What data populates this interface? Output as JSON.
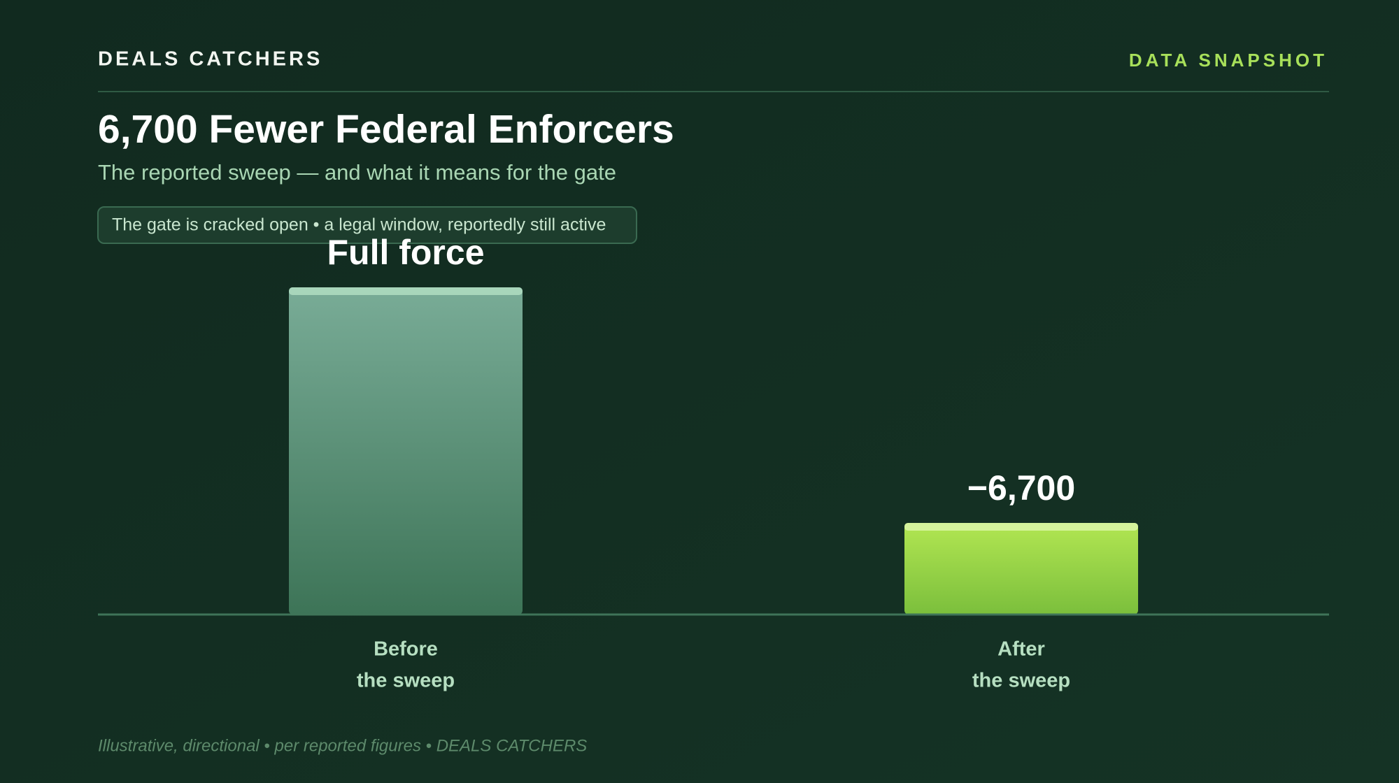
{
  "header": {
    "brand": "DEALS CATCHERS",
    "tag": "DATA SNAPSHOT"
  },
  "chart_data": {
    "type": "bar",
    "title": "6,700 Fewer Federal Enforcers",
    "subtitle": "The reported sweep — and what it means for the gate",
    "note": "The gate is cracked open • a legal window, reportedly still active",
    "categories": [
      [
        "Before",
        "the sweep"
      ],
      [
        "After",
        "the sweep"
      ]
    ],
    "values": [
      100,
      28
    ],
    "annotations": [
      "Full force",
      "−6,700"
    ],
    "ylim": [
      0,
      100
    ],
    "colors": [
      "#6fa48c",
      "#a4dc4c"
    ],
    "footer": "Illustrative, directional • per reported figures • DEALS CATCHERS"
  }
}
